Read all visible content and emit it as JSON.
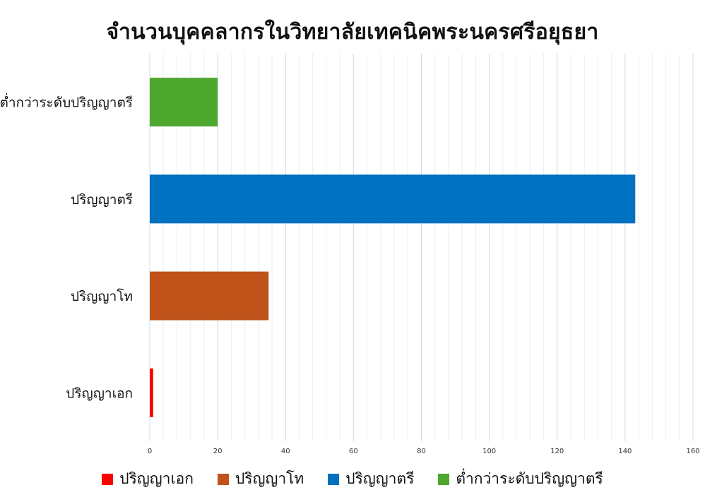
{
  "chart_data": {
    "type": "bar",
    "orientation": "horizontal",
    "title": "จำนวนบุคคลากรในวิทยาลัยเทคนิคพระนครศรีอยุธยา",
    "categories": [
      "ต่ำกว่าระดับปริญญาตรี",
      "ปริญญาตรี",
      "ปริญญาโท",
      "ปริญญาเอก"
    ],
    "values": [
      20,
      143,
      35,
      1
    ],
    "colors": [
      "#4ea72e",
      "#0070c0",
      "#c0531a",
      "#ff0000"
    ],
    "xlim": [
      0,
      160
    ],
    "x_ticks": [
      0,
      20,
      40,
      60,
      80,
      100,
      120,
      140,
      160
    ],
    "minor_grid_step": 4,
    "grid": true,
    "legend_position": "bottom",
    "legend": [
      {
        "name": "ปริญญาเอก",
        "color": "#ff0000"
      },
      {
        "name": "ปริญญาโท",
        "color": "#c0531a"
      },
      {
        "name": "ปริญญาตรี",
        "color": "#0070c0"
      },
      {
        "name": "ต่ำกว่าระดับปริญญาตรี",
        "color": "#4ea72e"
      }
    ]
  }
}
